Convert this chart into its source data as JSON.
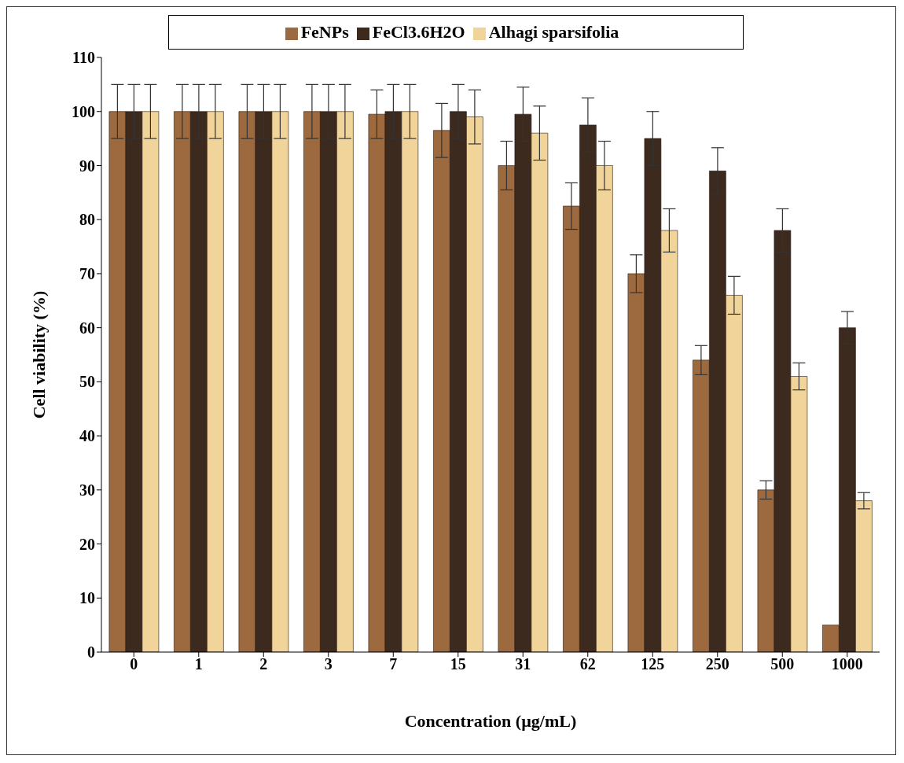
{
  "chart_data": {
    "type": "bar",
    "xlabel": "Concentration (µg/mL)",
    "ylabel": "Cell viability (%)",
    "categories": [
      "0",
      "1",
      "2",
      "3",
      "7",
      "15",
      "31",
      "62",
      "125",
      "250",
      "500",
      "1000"
    ],
    "series": [
      {
        "name": "FeNPs",
        "color": "#9c6a3e",
        "values": [
          100,
          100,
          100,
          100,
          99.5,
          96.5,
          90,
          82.5,
          70,
          54,
          30,
          5
        ],
        "errors": [
          5,
          5,
          5,
          5,
          4.5,
          5,
          4.5,
          4.3,
          3.5,
          2.7,
          1.7,
          null
        ]
      },
      {
        "name": "FeCl3.6H2O",
        "color": "#3d2a1e",
        "values": [
          100,
          100,
          100,
          100,
          100,
          100,
          99.5,
          97.5,
          95,
          89,
          78,
          60
        ],
        "errors": [
          5,
          5,
          5,
          5,
          5,
          5,
          5,
          5,
          5,
          4.3,
          4,
          3
        ]
      },
      {
        "name": "Alhagi sparsifolia",
        "color": "#f0d49a",
        "values": [
          100,
          100,
          100,
          100,
          100,
          99,
          96,
          90,
          78,
          66,
          51,
          28
        ],
        "errors": [
          5,
          5,
          5,
          5,
          5,
          5,
          5,
          4.5,
          4,
          3.5,
          2.5,
          1.5
        ]
      }
    ],
    "ylim": [
      0,
      110
    ],
    "yticks": [
      0,
      10,
      20,
      30,
      40,
      50,
      60,
      70,
      80,
      90,
      100,
      110
    ],
    "grid": false,
    "legend": "top"
  }
}
